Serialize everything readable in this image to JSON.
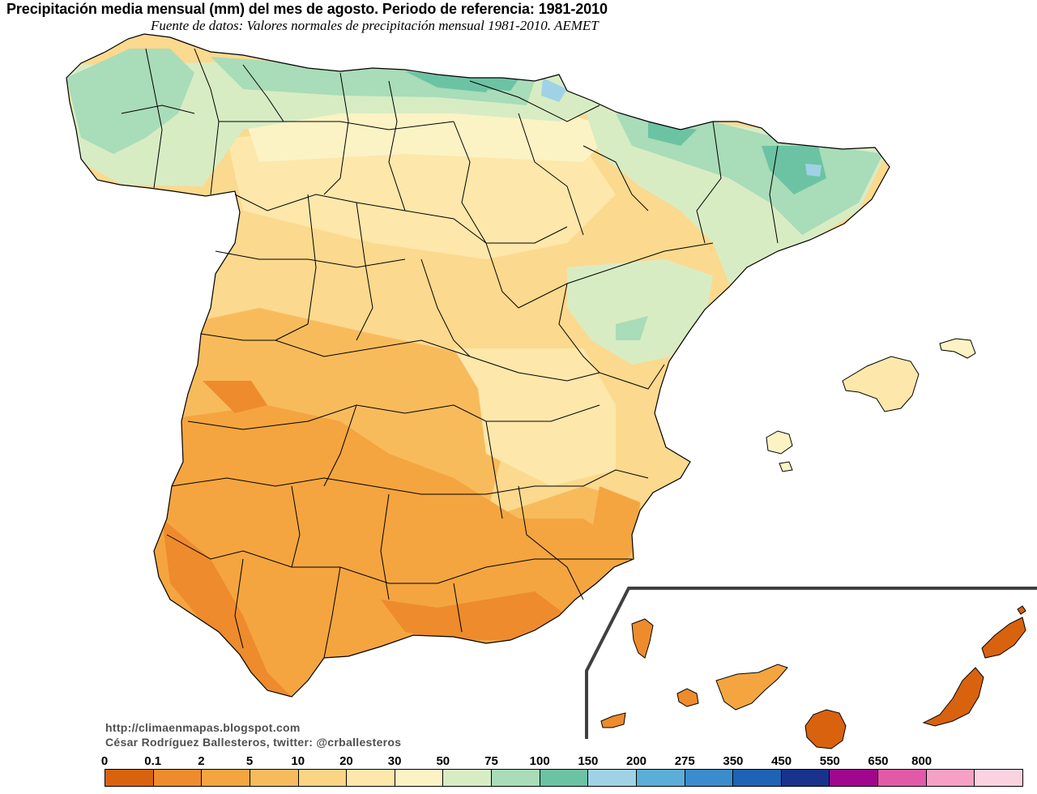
{
  "header": {
    "title": "Precipitación media mensual (mm) del mes de agosto. Periodo de referencia: 1981-2010",
    "subtitle": "Fuente de datos: Valores normales de precipitación mensual 1981-2010. AEMET"
  },
  "credits": {
    "url": "http://climaenmapas.blogspot.com",
    "author": "César Rodríguez Ballesteros, twitter: @crballesteros"
  },
  "legend": {
    "labels": [
      "0",
      "0.1",
      "2",
      "5",
      "10",
      "20",
      "30",
      "50",
      "75",
      "100",
      "150",
      "200",
      "275",
      "350",
      "450",
      "550",
      "650",
      "800"
    ],
    "colors": [
      "#d9620e",
      "#ee8b2c",
      "#f4a540",
      "#f8bb5c",
      "#fbd484",
      "#fde7aa",
      "#fbf3c4",
      "#d8ecc4",
      "#a9dcb8",
      "#6cc3a3",
      "#a0d2e6",
      "#5aaed8",
      "#3a8ccd",
      "#1e63b4",
      "#19338c",
      "#a0078c",
      "#e15aa8",
      "#f5a0c4",
      "#fbd2e0"
    ]
  }
}
